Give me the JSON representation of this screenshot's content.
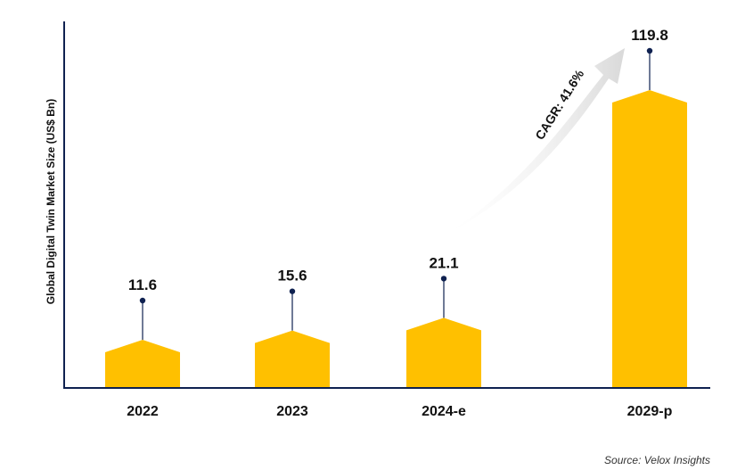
{
  "chart_data": {
    "type": "bar",
    "categories": [
      "2022",
      "2023",
      "2024-e",
      "2029-p"
    ],
    "values": [
      11.6,
      15.6,
      21.1,
      119.8
    ],
    "title": "",
    "xlabel": "",
    "ylabel": "Global Digital Twin Market Size (US$ Bn)",
    "annotation": "CAGR: 41.6%",
    "source": "Source: Velox Insights",
    "grid": false,
    "colors": {
      "bar": "#FFC000",
      "axis": "#0f2150",
      "marker": "#0f2150",
      "arrow": "#d9d9d9"
    }
  }
}
